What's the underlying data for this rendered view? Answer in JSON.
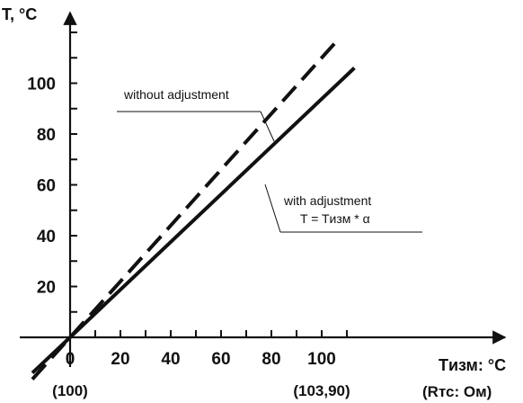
{
  "chart_data": {
    "type": "line",
    "title": "",
    "ylabel": "T, °C",
    "xlabel": "Tизм: °C",
    "xlabel_secondary": "(Rтс: Ом)",
    "x_ticks": [
      0,
      20,
      40,
      60,
      80,
      100
    ],
    "y_ticks": [
      20,
      40,
      60,
      80,
      100
    ],
    "x_tick_sublabels": [
      {
        "x": 0,
        "label": "(100)"
      },
      {
        "x": 100,
        "label": "(103,90)"
      }
    ],
    "xlim": [
      -15,
      118
    ],
    "ylim": [
      -10,
      125
    ],
    "grid": false,
    "series": [
      {
        "style": "dashed",
        "x": [
          -15,
          0,
          105
        ],
        "y": [
          -16.5,
          0,
          115.5
        ]
      },
      {
        "style": "solid",
        "x": [
          -15,
          0,
          113
        ],
        "y": [
          -14,
          0,
          106
        ]
      }
    ],
    "annotations": [
      {
        "lines": [
          "without adjustment"
        ],
        "target": "dashed"
      },
      {
        "lines": [
          "with adjustment",
          "T = Tизм * α"
        ],
        "target": "solid"
      }
    ]
  }
}
